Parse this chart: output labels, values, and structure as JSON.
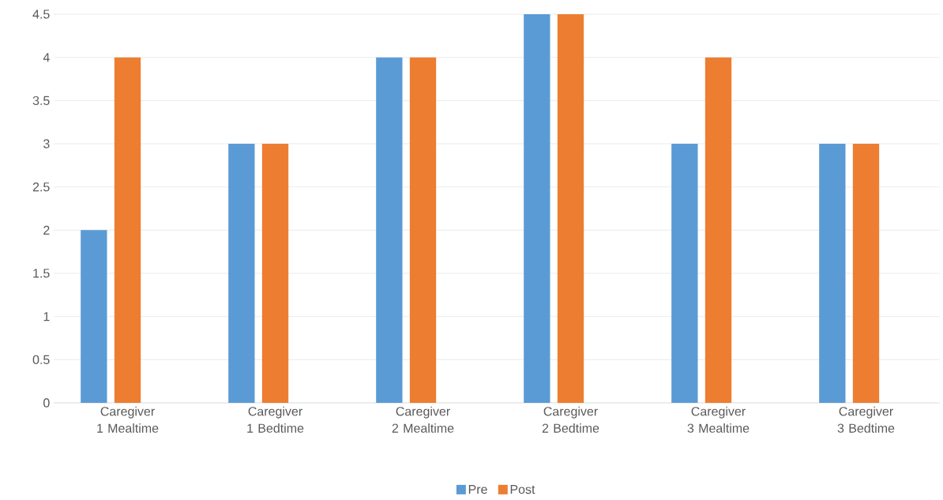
{
  "chart_data": {
    "type": "bar",
    "categories": [
      "Caregiver 1 Mealtime",
      "Caregiver 1 Bedtime",
      "Caregiver 2 Mealtime",
      "Caregiver 2 Bedtime",
      "Caregiver 3 Mealtime",
      "Caregiver 3 Bedtime"
    ],
    "series": [
      {
        "name": "Pre",
        "color": "#5b9bd5",
        "values": [
          2,
          3,
          4,
          4.5,
          3,
          3
        ]
      },
      {
        "name": "Post",
        "color": "#ed7d31",
        "values": [
          4,
          3,
          4,
          4.5,
          4,
          3
        ]
      }
    ],
    "ylim": [
      0,
      4.5
    ],
    "yticks": [
      0,
      0.5,
      1,
      1.5,
      2,
      2.5,
      3,
      3.5,
      4,
      4.5
    ],
    "grid": "y",
    "legend": "bottom"
  }
}
